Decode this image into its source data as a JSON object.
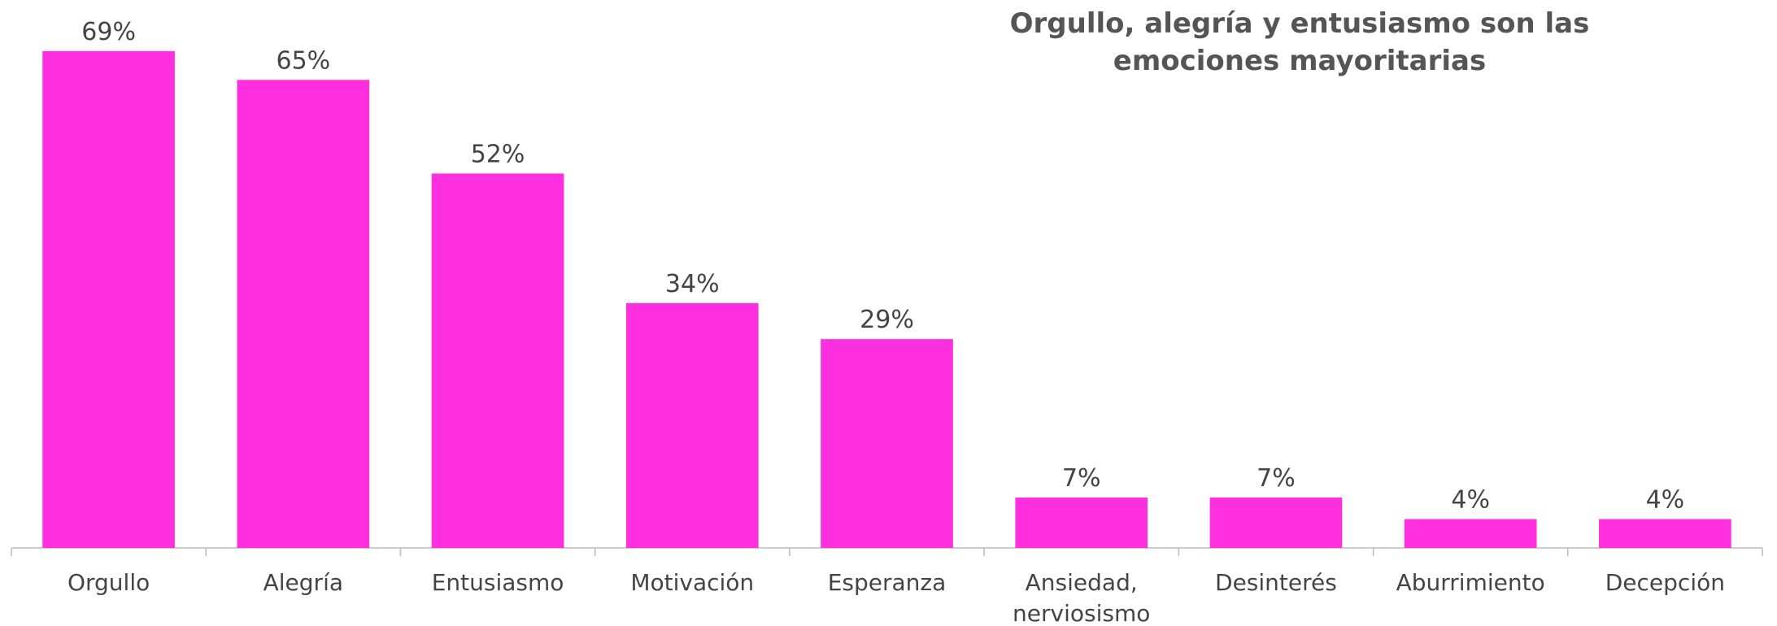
{
  "chart_data": {
    "type": "bar",
    "title": "Orgullo, alegría y entusiasmo son las emociones mayoritarias",
    "categories": [
      "Orgullo",
      "Alegría",
      "Entusiasmo",
      "Motivación",
      "Esperanza",
      "Ansiedad, nerviosismo",
      "Desinterés",
      "Aburrimiento",
      "Decepción"
    ],
    "values": [
      69,
      65,
      52,
      34,
      29,
      7,
      7,
      4,
      4
    ],
    "value_labels": [
      "69%",
      "65%",
      "52%",
      "34%",
      "29%",
      "7%",
      "7%",
      "4%",
      "4%"
    ],
    "color": "#ff2fe0",
    "ylim": [
      0,
      70
    ]
  }
}
